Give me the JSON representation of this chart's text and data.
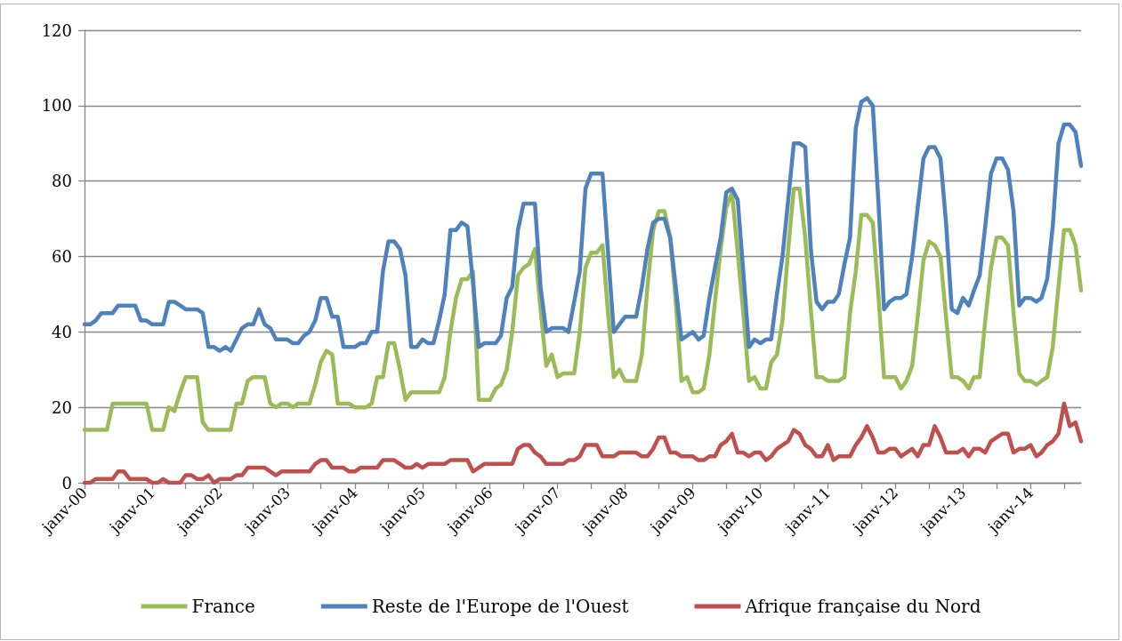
{
  "chart_data": {
    "type": "line",
    "x": [
      "2000-01",
      "2000-02",
      "2000-03",
      "2000-04",
      "2000-05",
      "2000-06",
      "2000-07",
      "2000-08",
      "2000-09",
      "2000-10",
      "2000-11",
      "2000-12",
      "2001-01",
      "2001-02",
      "2001-03",
      "2001-04",
      "2001-05",
      "2001-06",
      "2001-07",
      "2001-08",
      "2001-09",
      "2001-10",
      "2001-11",
      "2001-12",
      "2002-01",
      "2002-02",
      "2002-03",
      "2002-04",
      "2002-05",
      "2002-06",
      "2002-07",
      "2002-08",
      "2002-09",
      "2002-10",
      "2002-11",
      "2002-12",
      "2003-01",
      "2003-02",
      "2003-03",
      "2003-04",
      "2003-05",
      "2003-06",
      "2003-07",
      "2003-08",
      "2003-09",
      "2003-10",
      "2003-11",
      "2003-12",
      "2004-01",
      "2004-02",
      "2004-03",
      "2004-04",
      "2004-05",
      "2004-06",
      "2004-07",
      "2004-08",
      "2004-09",
      "2004-10",
      "2004-11",
      "2004-12",
      "2005-01",
      "2005-02",
      "2005-03",
      "2005-04",
      "2005-05",
      "2005-06",
      "2005-07",
      "2005-08",
      "2005-09",
      "2005-10",
      "2005-11",
      "2005-12",
      "2006-01",
      "2006-02",
      "2006-03",
      "2006-04",
      "2006-05",
      "2006-06",
      "2006-07",
      "2006-08",
      "2006-09",
      "2006-10",
      "2006-11",
      "2006-12",
      "2007-01",
      "2007-02",
      "2007-03",
      "2007-04",
      "2007-05",
      "2007-06",
      "2007-07",
      "2007-08",
      "2007-09",
      "2007-10",
      "2007-11",
      "2007-12",
      "2008-01",
      "2008-02",
      "2008-03",
      "2008-04",
      "2008-05",
      "2008-06",
      "2008-07",
      "2008-08",
      "2008-09",
      "2008-10",
      "2008-11",
      "2008-12",
      "2009-01",
      "2009-02",
      "2009-03",
      "2009-04",
      "2009-05",
      "2009-06",
      "2009-07",
      "2009-08",
      "2009-09",
      "2009-10",
      "2009-11",
      "2009-12",
      "2010-01",
      "2010-02",
      "2010-03",
      "2010-04",
      "2010-05",
      "2010-06",
      "2010-07",
      "2010-08",
      "2010-09",
      "2010-10",
      "2010-11",
      "2010-12",
      "2011-01",
      "2011-02",
      "2011-03",
      "2011-04",
      "2011-05",
      "2011-06",
      "2011-07",
      "2011-08",
      "2011-09",
      "2011-10",
      "2011-11",
      "2011-12",
      "2012-01",
      "2012-02",
      "2012-03",
      "2012-04",
      "2012-05",
      "2012-06",
      "2012-07",
      "2012-08",
      "2012-09",
      "2012-10",
      "2012-11",
      "2012-12",
      "2013-01",
      "2013-02",
      "2013-03",
      "2013-04",
      "2013-05",
      "2013-06",
      "2013-07",
      "2013-08",
      "2013-09",
      "2013-10",
      "2013-11",
      "2013-12",
      "2014-01",
      "2014-02",
      "2014-03",
      "2014-04",
      "2014-05",
      "2014-06",
      "2014-07",
      "2014-08",
      "2014-09",
      "2014-10"
    ],
    "series": [
      {
        "name": "France",
        "color": "#9bbb59",
        "values": [
          14,
          14,
          14,
          14,
          14,
          21,
          21,
          21,
          21,
          21,
          21,
          21,
          14,
          14,
          14,
          20,
          19,
          24,
          28,
          28,
          28,
          16,
          14,
          14,
          14,
          14,
          14,
          21,
          21,
          27,
          28,
          28,
          28,
          21,
          20,
          21,
          21,
          20,
          21,
          21,
          21,
          26,
          32,
          35,
          34,
          21,
          21,
          21,
          20,
          20,
          20,
          21,
          28,
          28,
          37,
          37,
          30,
          22,
          24,
          24,
          24,
          24,
          24,
          24,
          28,
          40,
          49,
          54,
          54,
          56,
          22,
          22,
          22,
          25,
          26,
          30,
          40,
          55,
          57,
          58,
          62,
          46,
          31,
          34,
          28,
          29,
          29,
          29,
          40,
          57,
          61,
          61,
          63,
          45,
          28,
          30,
          27,
          27,
          27,
          34,
          52,
          67,
          72,
          72,
          65,
          48,
          27,
          28,
          24,
          24,
          25,
          34,
          48,
          62,
          73,
          77,
          61,
          45,
          27,
          28,
          25,
          25,
          32,
          34,
          43,
          62,
          78,
          78,
          65,
          46,
          28,
          28,
          27,
          27,
          27,
          28,
          45,
          56,
          71,
          71,
          69,
          50,
          28,
          28,
          28,
          25,
          27,
          31,
          44,
          59,
          64,
          63,
          60,
          44,
          28,
          28,
          27,
          25,
          28,
          28,
          43,
          57,
          65,
          65,
          63,
          45,
          29,
          27,
          27,
          26,
          27,
          28,
          36,
          52,
          67,
          67,
          63,
          51
        ]
      },
      {
        "name": "Reste de l'Europe de l'Ouest",
        "color": "#4f81bd",
        "values": [
          42,
          42,
          43,
          45,
          45,
          45,
          47,
          47,
          47,
          47,
          43,
          43,
          42,
          42,
          42,
          48,
          48,
          47,
          46,
          46,
          46,
          45,
          36,
          36,
          35,
          36,
          35,
          38,
          41,
          42,
          42,
          46,
          42,
          41,
          38,
          38,
          38,
          37,
          37,
          39,
          40,
          43,
          49,
          49,
          44,
          44,
          36,
          36,
          36,
          37,
          37,
          40,
          40,
          56,
          64,
          64,
          62,
          55,
          36,
          36,
          38,
          37,
          37,
          43,
          50,
          67,
          67,
          69,
          68,
          53,
          36,
          37,
          37,
          37,
          39,
          49,
          52,
          67,
          74,
          74,
          74,
          52,
          40,
          41,
          41,
          41,
          40,
          48,
          56,
          78,
          82,
          82,
          82,
          61,
          40,
          42,
          44,
          44,
          44,
          52,
          62,
          69,
          70,
          70,
          65,
          52,
          38,
          39,
          40,
          38,
          39,
          49,
          57,
          65,
          77,
          78,
          75,
          56,
          36,
          38,
          37,
          38,
          38,
          50,
          60,
          75,
          90,
          90,
          89,
          62,
          48,
          46,
          48,
          48,
          50,
          58,
          65,
          94,
          101,
          102,
          100,
          75,
          46,
          48,
          49,
          49,
          50,
          60,
          73,
          86,
          89,
          89,
          86,
          69,
          46,
          45,
          49,
          47,
          51,
          55,
          68,
          82,
          86,
          86,
          83,
          72,
          47,
          49,
          49,
          48,
          49,
          54,
          68,
          90,
          95,
          95,
          93,
          84
        ]
      },
      {
        "name": "Afrique française du Nord",
        "color": "#c0504d",
        "values": [
          0,
          0,
          1,
          1,
          1,
          1,
          3,
          3,
          1,
          1,
          1,
          1,
          0,
          0,
          1,
          0,
          0,
          0,
          2,
          2,
          1,
          1,
          2,
          0,
          1,
          1,
          1,
          2,
          2,
          4,
          4,
          4,
          4,
          3,
          2,
          3,
          3,
          3,
          3,
          3,
          3,
          5,
          6,
          6,
          4,
          4,
          4,
          3,
          3,
          4,
          4,
          4,
          4,
          6,
          6,
          6,
          5,
          4,
          4,
          5,
          4,
          5,
          5,
          5,
          5,
          6,
          6,
          6,
          6,
          3,
          4,
          5,
          5,
          5,
          5,
          5,
          5,
          9,
          10,
          10,
          8,
          7,
          5,
          5,
          5,
          5,
          6,
          6,
          7,
          10,
          10,
          10,
          7,
          7,
          7,
          8,
          8,
          8,
          8,
          7,
          7,
          9,
          12,
          12,
          8,
          8,
          7,
          7,
          7,
          6,
          6,
          7,
          7,
          10,
          11,
          13,
          8,
          8,
          7,
          8,
          8,
          6,
          7,
          9,
          10,
          11,
          14,
          13,
          10,
          9,
          7,
          7,
          10,
          6,
          7,
          7,
          7,
          10,
          12,
          15,
          12,
          8,
          8,
          9,
          9,
          7,
          8,
          9,
          7,
          10,
          10,
          15,
          12,
          8,
          8,
          8,
          9,
          7,
          9,
          9,
          8,
          11,
          12,
          13,
          13,
          8,
          9,
          9,
          10,
          7,
          8,
          10,
          11,
          13,
          21,
          15,
          16,
          11
        ]
      }
    ],
    "xlim": [
      "2000-01",
      "2014-10"
    ],
    "xticks": [
      {
        "value": "2000-01",
        "label": "janv-00"
      },
      {
        "value": "2000-07",
        "label": null
      },
      {
        "value": "2001-01",
        "label": "janv-01"
      },
      {
        "value": "2001-07",
        "label": null
      },
      {
        "value": "2002-01",
        "label": "janv-02"
      },
      {
        "value": "2002-07",
        "label": null
      },
      {
        "value": "2003-01",
        "label": "janv-03"
      },
      {
        "value": "2003-07",
        "label": null
      },
      {
        "value": "2004-01",
        "label": "janv-04"
      },
      {
        "value": "2004-07",
        "label": null
      },
      {
        "value": "2005-01",
        "label": "janv-05"
      },
      {
        "value": "2005-07",
        "label": null
      },
      {
        "value": "2006-01",
        "label": "janv-06"
      },
      {
        "value": "2006-07",
        "label": null
      },
      {
        "value": "2007-01",
        "label": "janv-07"
      },
      {
        "value": "2007-07",
        "label": null
      },
      {
        "value": "2008-01",
        "label": "janv-08"
      },
      {
        "value": "2008-07",
        "label": null
      },
      {
        "value": "2009-01",
        "label": "janv-09"
      },
      {
        "value": "2009-07",
        "label": null
      },
      {
        "value": "2010-01",
        "label": "janv-10"
      },
      {
        "value": "2010-07",
        "label": null
      },
      {
        "value": "2011-01",
        "label": "janv-11"
      },
      {
        "value": "2011-07",
        "label": null
      },
      {
        "value": "2012-01",
        "label": "janv-12"
      },
      {
        "value": "2012-07",
        "label": null
      },
      {
        "value": "2013-01",
        "label": "janv-13"
      },
      {
        "value": "2013-07",
        "label": null
      },
      {
        "value": "2014-01",
        "label": "janv-14"
      },
      {
        "value": "2014-07",
        "label": null
      }
    ],
    "ylim": [
      0,
      120
    ],
    "yticks": [
      0,
      20,
      40,
      60,
      80,
      100,
      120
    ],
    "grid": "y",
    "legend": "bottom"
  }
}
